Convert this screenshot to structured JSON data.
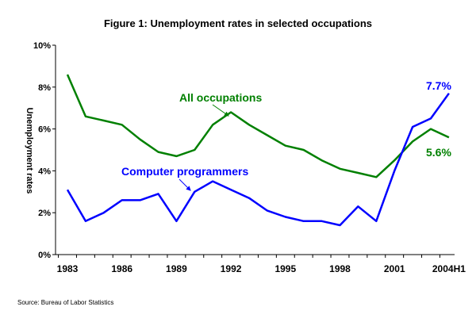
{
  "chart_data": {
    "type": "line",
    "title": "Figure 1: Unemployment rates in selected occupations",
    "ylabel": "Unemployment rates",
    "xlabel": "",
    "ylim": [
      0,
      10
    ],
    "y_ticks": [
      "0%",
      "2%",
      "4%",
      "6%",
      "8%",
      "10%"
    ],
    "x_tick_labels": [
      "1983",
      "1986",
      "1989",
      "1992",
      "1995",
      "1998",
      "2001",
      "2004H1"
    ],
    "x": [
      "1983",
      "1984",
      "1985",
      "1986",
      "1987",
      "1988",
      "1989",
      "1990",
      "1991",
      "1992",
      "1993",
      "1994",
      "1995",
      "1996",
      "1997",
      "1998",
      "1999",
      "2000",
      "2001",
      "2002",
      "2003",
      "2004H1"
    ],
    "grid": false,
    "series": [
      {
        "name": "All occupations",
        "color": "#008000",
        "values": [
          8.6,
          6.6,
          6.4,
          6.2,
          5.5,
          4.9,
          4.7,
          5.0,
          6.2,
          6.8,
          6.2,
          5.7,
          5.2,
          5.0,
          4.5,
          4.1,
          3.9,
          3.7,
          4.5,
          5.4,
          6.0,
          5.6
        ],
        "end_label": "5.6%"
      },
      {
        "name": "Computer programmers",
        "color": "#0000ff",
        "values": [
          3.1,
          1.6,
          2.0,
          2.6,
          2.6,
          2.9,
          1.6,
          3.0,
          3.5,
          3.1,
          2.7,
          2.1,
          1.8,
          1.6,
          1.6,
          1.4,
          2.3,
          1.6,
          4.0,
          6.1,
          6.5,
          7.7
        ],
        "end_label": "7.7%"
      }
    ],
    "annotations": [
      "All occupations",
      "Computer programmers"
    ],
    "source": "Source:  Bureau of Labor Statistics"
  }
}
